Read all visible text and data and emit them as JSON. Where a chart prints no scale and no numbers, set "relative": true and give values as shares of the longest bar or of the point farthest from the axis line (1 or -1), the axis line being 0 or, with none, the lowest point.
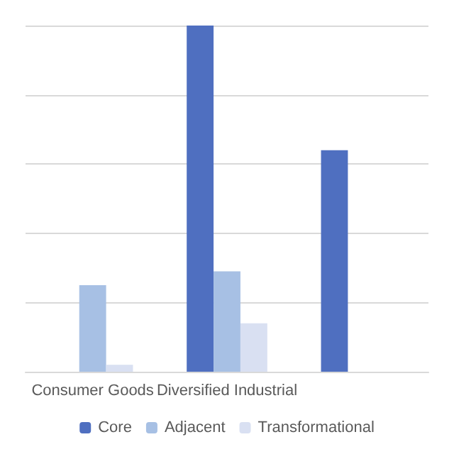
{
  "chart_data": {
    "type": "bar",
    "relative": true,
    "categories": [
      "Consumer Goods",
      "Diversified Industrial",
      null
    ],
    "series": [
      {
        "name": "Core",
        "color": "#4f6fc0",
        "values": [
          null,
          1,
          0.64
        ]
      },
      {
        "name": "Adjacent",
        "color": "#a7c0e4",
        "values": [
          0.25,
          0.29,
          null
        ]
      },
      {
        "name": "Transformational",
        "color": "#d9e0f2",
        "values": [
          0.02,
          0.14,
          null
        ]
      }
    ],
    "grid": "y",
    "legend": "bottom"
  }
}
